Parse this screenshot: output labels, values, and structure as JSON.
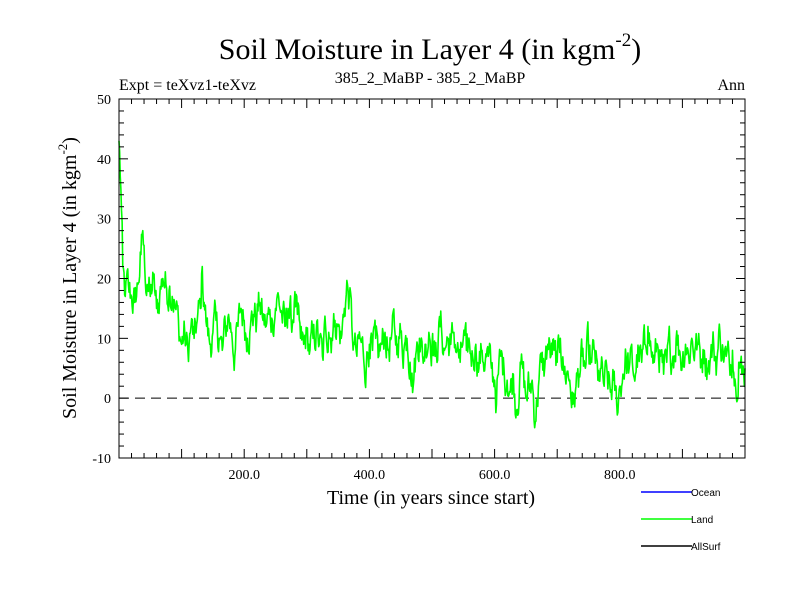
{
  "chart_data": {
    "type": "line",
    "title_main": "Soil Moisture in Layer 4 (in kgm",
    "title_sup": "-2",
    "title_close": ")",
    "subtitle_left": "Expt = teXvz1-teXvz",
    "subtitle_center": "385_2_MaBP - 385_2_MaBP",
    "subtitle_right": "Ann",
    "xlabel": "Time (in years since start)",
    "ylabel_main": "Soil Moisture in Layer 4 (in kgm",
    "ylabel_sup": "-2",
    "ylabel_close": ")",
    "xlim": [
      0,
      1000
    ],
    "ylim": [
      -10,
      50
    ],
    "x_ticks": [
      {
        "value": 200,
        "label": "200.0"
      },
      {
        "value": 400,
        "label": "400.0"
      },
      {
        "value": 600,
        "label": "600.0"
      },
      {
        "value": 800,
        "label": "800.0"
      }
    ],
    "y_ticks": [
      {
        "value": -10,
        "label": "-10"
      },
      {
        "value": 0,
        "label": "0"
      },
      {
        "value": 10,
        "label": "10"
      },
      {
        "value": 20,
        "label": "20"
      },
      {
        "value": 30,
        "label": "30"
      },
      {
        "value": 40,
        "label": "40"
      },
      {
        "value": 50,
        "label": "50"
      }
    ],
    "zero_line": 0,
    "legend": [
      {
        "name": "Ocean",
        "color": "#0000ff"
      },
      {
        "name": "Land",
        "color": "#00ff00"
      },
      {
        "name": "AllSurf",
        "color": "#000000"
      }
    ],
    "series": [
      {
        "name": "Land",
        "color": "#00ff00",
        "note": "annual series; anchor points (year, value) describing the trend and notable extremes",
        "points": [
          [
            0,
            43
          ],
          [
            3,
            35
          ],
          [
            6,
            22
          ],
          [
            10,
            17
          ],
          [
            15,
            19
          ],
          [
            20,
            17
          ],
          [
            25,
            16
          ],
          [
            30,
            19
          ],
          [
            35,
            24
          ],
          [
            38,
            28
          ],
          [
            41,
            22
          ],
          [
            45,
            19
          ],
          [
            50,
            17
          ],
          [
            55,
            20
          ],
          [
            60,
            15
          ],
          [
            65,
            17
          ],
          [
            70,
            20
          ],
          [
            75,
            19
          ],
          [
            80,
            18
          ],
          [
            85,
            17
          ],
          [
            90,
            15
          ],
          [
            95,
            13
          ],
          [
            100,
            9
          ],
          [
            105,
            11
          ],
          [
            110,
            8
          ],
          [
            115,
            12
          ],
          [
            120,
            10
          ],
          [
            125,
            13
          ],
          [
            130,
            15
          ],
          [
            133,
            22
          ],
          [
            136,
            16
          ],
          [
            140,
            12
          ],
          [
            145,
            9
          ],
          [
            150,
            11
          ],
          [
            155,
            13
          ],
          [
            160,
            10
          ],
          [
            165,
            8
          ],
          [
            170,
            12
          ],
          [
            175,
            14
          ],
          [
            180,
            11
          ],
          [
            185,
            7
          ],
          [
            190,
            12
          ],
          [
            195,
            15
          ],
          [
            200,
            13
          ],
          [
            205,
            10
          ],
          [
            210,
            12
          ],
          [
            215,
            14
          ],
          [
            220,
            13
          ],
          [
            225,
            16
          ],
          [
            230,
            13
          ],
          [
            235,
            12
          ],
          [
            240,
            14
          ],
          [
            245,
            13
          ],
          [
            250,
            15
          ],
          [
            255,
            17
          ],
          [
            260,
            14
          ],
          [
            265,
            12
          ],
          [
            270,
            15
          ],
          [
            275,
            13
          ],
          [
            280,
            16
          ],
          [
            285,
            14
          ],
          [
            290,
            10
          ],
          [
            295,
            9
          ],
          [
            300,
            11
          ],
          [
            305,
            8
          ],
          [
            310,
            10
          ],
          [
            315,
            11
          ],
          [
            320,
            9
          ],
          [
            325,
            7
          ],
          [
            330,
            12
          ],
          [
            335,
            11
          ],
          [
            340,
            10
          ],
          [
            345,
            13
          ],
          [
            350,
            12
          ],
          [
            355,
            10
          ],
          [
            360,
            15
          ],
          [
            365,
            19
          ],
          [
            368,
            17
          ],
          [
            372,
            12
          ],
          [
            376,
            9
          ],
          [
            380,
            7
          ],
          [
            385,
            10
          ],
          [
            390,
            8
          ],
          [
            395,
            5
          ],
          [
            400,
            9
          ],
          [
            405,
            8
          ],
          [
            410,
            10
          ],
          [
            415,
            7
          ],
          [
            420,
            9
          ],
          [
            425,
            11
          ],
          [
            430,
            8
          ],
          [
            435,
            10
          ],
          [
            440,
            12
          ],
          [
            445,
            9
          ],
          [
            450,
            11
          ],
          [
            455,
            8
          ],
          [
            460,
            10
          ],
          [
            465,
            6
          ],
          [
            470,
            2
          ],
          [
            475,
            8
          ],
          [
            480,
            10
          ],
          [
            485,
            7
          ],
          [
            490,
            9
          ],
          [
            495,
            11
          ],
          [
            500,
            9
          ],
          [
            505,
            7
          ],
          [
            510,
            10
          ],
          [
            515,
            12
          ],
          [
            520,
            8
          ],
          [
            525,
            10
          ],
          [
            530,
            9
          ],
          [
            535,
            11
          ],
          [
            540,
            8
          ],
          [
            545,
            6
          ],
          [
            550,
            10
          ],
          [
            555,
            8
          ],
          [
            560,
            9
          ],
          [
            565,
            7
          ],
          [
            570,
            9
          ],
          [
            575,
            5
          ],
          [
            580,
            8
          ],
          [
            585,
            6
          ],
          [
            590,
            7
          ],
          [
            595,
            5
          ],
          [
            600,
            3
          ],
          [
            603,
            -1
          ],
          [
            606,
            4
          ],
          [
            610,
            7
          ],
          [
            615,
            5
          ],
          [
            620,
            3
          ],
          [
            625,
            1
          ],
          [
            630,
            4
          ],
          [
            635,
            -2
          ],
          [
            640,
            3
          ],
          [
            645,
            5
          ],
          [
            650,
            0
          ],
          [
            655,
            2
          ],
          [
            660,
            3
          ],
          [
            665,
            -4
          ],
          [
            670,
            2
          ],
          [
            675,
            6
          ],
          [
            680,
            5
          ],
          [
            685,
            9
          ],
          [
            690,
            7
          ],
          [
            695,
            8
          ],
          [
            700,
            6
          ],
          [
            705,
            10
          ],
          [
            710,
            5
          ],
          [
            715,
            4
          ],
          [
            720,
            3
          ],
          [
            725,
            -1
          ],
          [
            730,
            2
          ],
          [
            735,
            4
          ],
          [
            740,
            7
          ],
          [
            745,
            5
          ],
          [
            750,
            9
          ],
          [
            755,
            6
          ],
          [
            760,
            8
          ],
          [
            765,
            3
          ],
          [
            770,
            5
          ],
          [
            775,
            2
          ],
          [
            780,
            4
          ],
          [
            785,
            1
          ],
          [
            790,
            3
          ],
          [
            795,
            -1
          ],
          [
            800,
            2
          ],
          [
            805,
            4
          ],
          [
            810,
            7
          ],
          [
            815,
            5
          ],
          [
            820,
            6
          ],
          [
            825,
            4
          ],
          [
            830,
            8
          ],
          [
            835,
            6
          ],
          [
            840,
            9
          ],
          [
            845,
            12
          ],
          [
            850,
            8
          ],
          [
            855,
            6
          ],
          [
            860,
            9
          ],
          [
            865,
            7
          ],
          [
            870,
            4
          ],
          [
            875,
            6
          ],
          [
            880,
            9
          ],
          [
            885,
            7
          ],
          [
            890,
            10
          ],
          [
            895,
            8
          ],
          [
            900,
            6
          ],
          [
            905,
            9
          ],
          [
            910,
            7
          ],
          [
            915,
            10
          ],
          [
            920,
            8
          ],
          [
            925,
            9
          ],
          [
            930,
            6
          ],
          [
            935,
            8
          ],
          [
            940,
            5
          ],
          [
            945,
            7
          ],
          [
            950,
            9
          ],
          [
            955,
            6
          ],
          [
            960,
            11
          ],
          [
            965,
            8
          ],
          [
            970,
            7
          ],
          [
            975,
            6
          ],
          [
            980,
            8
          ],
          [
            985,
            2
          ],
          [
            990,
            6
          ],
          [
            995,
            4
          ],
          [
            1000,
            5
          ]
        ]
      }
    ]
  }
}
